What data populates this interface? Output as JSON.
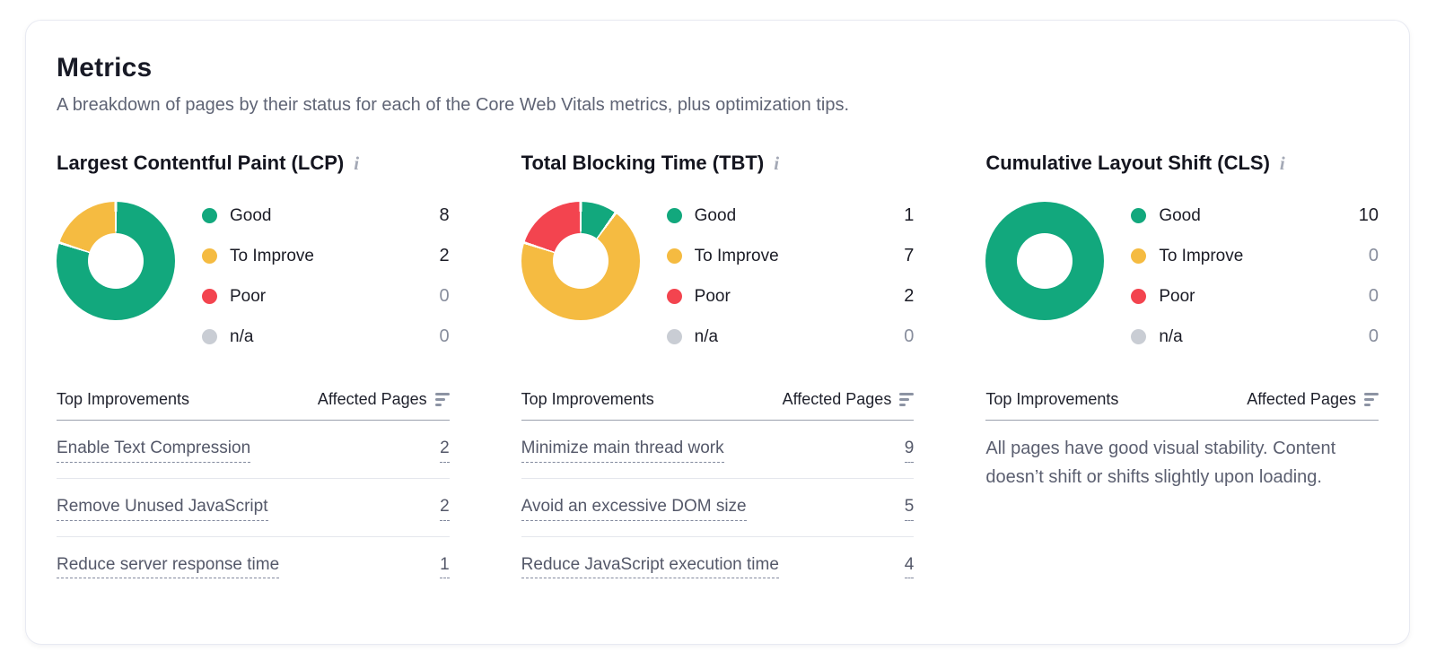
{
  "page": {
    "title": "Metrics",
    "subtitle": "A breakdown of pages by their status for each of the Core Web Vitals metrics, plus optimization tips."
  },
  "palette": {
    "good": "#12A87D",
    "to_improve": "#F5BB41",
    "poor": "#F3444F",
    "na": "#C9CDD4"
  },
  "palette_order": [
    "good",
    "to_improve",
    "poor",
    "na"
  ],
  "legend": {
    "items": [
      "Good",
      "To Improve",
      "Poor",
      "n/a"
    ]
  },
  "icons": {
    "info": "i"
  },
  "table": {
    "col1": "Top Improvements",
    "col2": "Affected Pages"
  },
  "metrics": [
    {
      "id": "lcp",
      "title": "Largest Contentful Paint (LCP)",
      "improvements": [
        {
          "label": "Enable Text Compression",
          "pages": "2"
        },
        {
          "label": "Remove Unused JavaScript",
          "pages": "2"
        },
        {
          "label": "Reduce server response time",
          "pages": "1"
        }
      ]
    },
    {
      "id": "tbt",
      "title": "Total Blocking Time (TBT)",
      "improvements": [
        {
          "label": "Minimize main thread work",
          "pages": "9"
        },
        {
          "label": "Avoid an excessive DOM size",
          "pages": "5"
        },
        {
          "label": "Reduce JavaScript execution time",
          "pages": "4"
        }
      ]
    },
    {
      "id": "cls",
      "title": "Cumulative Layout Shift (CLS)",
      "improvements": [],
      "empty_message": "All pages have good visual stability. Content doesn’t shift or shifts slightly upon loading."
    }
  ],
  "chart_data": [
    {
      "type": "pie",
      "subtype": "donut",
      "title": "Largest Contentful Paint (LCP)",
      "labels": [
        "Good",
        "To Improve",
        "Poor",
        "n/a"
      ],
      "values": [
        8,
        2,
        0,
        0
      ],
      "legend_position": "right"
    },
    {
      "type": "pie",
      "subtype": "donut",
      "title": "Total Blocking Time (TBT)",
      "labels": [
        "Good",
        "To Improve",
        "Poor",
        "n/a"
      ],
      "values": [
        1,
        7,
        2,
        0
      ],
      "legend_position": "right"
    },
    {
      "type": "pie",
      "subtype": "donut",
      "title": "Cumulative Layout Shift (CLS)",
      "labels": [
        "Good",
        "To Improve",
        "Poor",
        "n/a"
      ],
      "values": [
        10,
        0,
        0,
        0
      ],
      "legend_position": "right"
    }
  ]
}
